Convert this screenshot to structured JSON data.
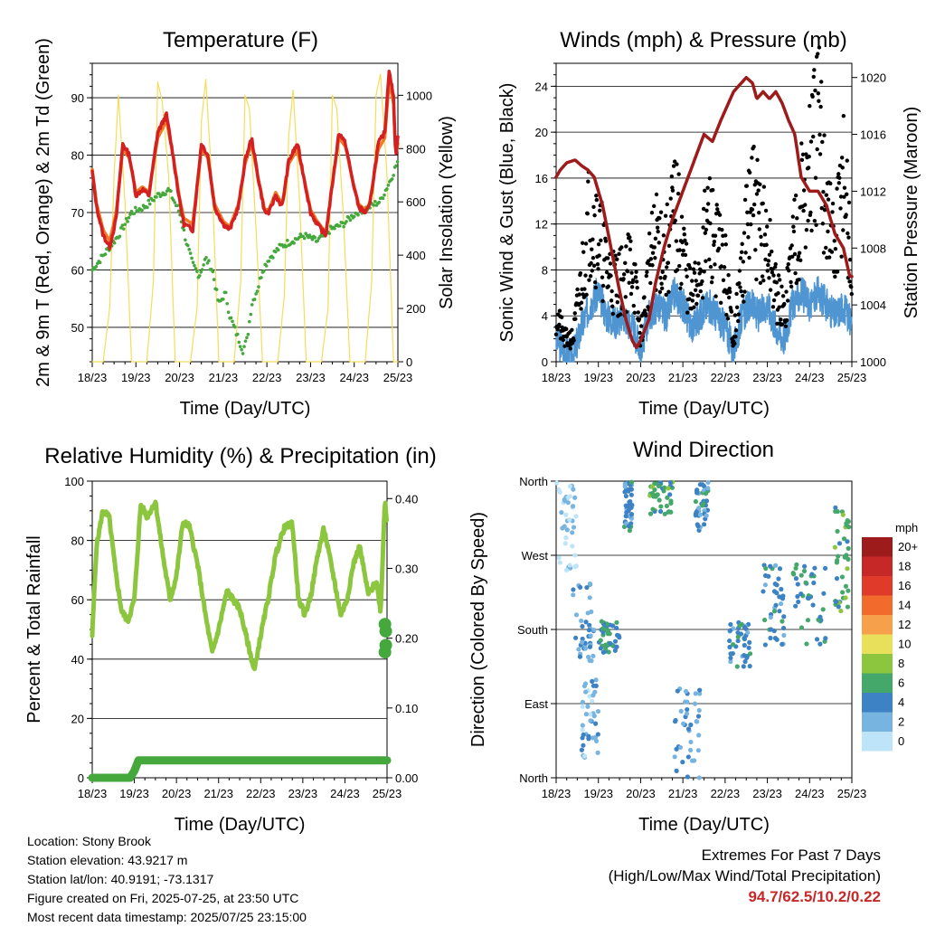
{
  "chart_data": [
    {
      "type": "line",
      "title": "Temperature (F)",
      "xlabel": "Time (Day/UTC)",
      "ylabel": "2m & 9m T (Red, Orange) & 2m Td (Green)",
      "y2label": "Solar Insolation (Yellow)",
      "x_ticks": [
        "18/23",
        "19/23",
        "20/23",
        "21/23",
        "22/23",
        "23/23",
        "24/23",
        "25/23"
      ],
      "xlim": [
        0,
        7
      ],
      "ylim": [
        44,
        96
      ],
      "y_ticks": [
        50,
        60,
        70,
        80,
        90
      ],
      "y2lim": [
        0,
        1120
      ],
      "y2_ticks": [
        0,
        200,
        400,
        600,
        800,
        1000
      ],
      "grid": "horizontal",
      "colors": {
        "t2m": "#d42020",
        "t9m": "#f07a28",
        "td": "#44a83c",
        "solar": "#f5dc5a"
      },
      "series": [
        {
          "key": "t2m",
          "x": [
            0,
            0.1,
            0.25,
            0.4,
            0.55,
            0.7,
            0.85,
            1.0,
            1.15,
            1.3,
            1.5,
            1.7,
            1.85,
            2.0,
            2.1,
            2.3,
            2.5,
            2.65,
            2.8,
            3.0,
            3.15,
            3.35,
            3.5,
            3.65,
            3.8,
            3.95,
            4.05,
            4.2,
            4.35,
            4.5,
            4.7,
            4.85,
            5.0,
            5.15,
            5.35,
            5.5,
            5.65,
            5.8,
            5.95,
            6.1,
            6.25,
            6.35,
            6.55,
            6.7,
            6.8,
            6.9,
            6.95,
            7.0
          ],
          "y": [
            77,
            71,
            66,
            64,
            69,
            82,
            80,
            73,
            74,
            73,
            84,
            87,
            80,
            72,
            68,
            67,
            82,
            80,
            71,
            68,
            67,
            71,
            79,
            83,
            76,
            70,
            70,
            73,
            71,
            79,
            82,
            76,
            70,
            68,
            66,
            75,
            84,
            82,
            76,
            71,
            70,
            71,
            82,
            84,
            95,
            90,
            80,
            83
          ]
        },
        {
          "key": "t9m",
          "x": [
            0,
            0.1,
            0.25,
            0.4,
            0.55,
            0.7,
            0.85,
            1.0,
            1.15,
            1.3,
            1.5,
            1.7,
            1.85,
            2.0,
            2.1,
            2.3,
            2.5,
            2.65,
            2.8,
            3.0,
            3.15,
            3.35,
            3.5,
            3.65,
            3.8,
            3.95,
            4.05,
            4.2,
            4.35,
            4.5,
            4.7,
            4.85,
            5.0,
            5.15,
            5.35,
            5.5,
            5.65,
            5.8,
            5.95,
            6.1,
            6.25,
            6.35,
            6.55,
            6.7,
            6.8,
            6.9,
            6.95,
            7.0
          ],
          "y": [
            77.5,
            71.5,
            67,
            65,
            70,
            81,
            79.5,
            73.5,
            74.5,
            73.5,
            83,
            86,
            80,
            72.5,
            69,
            68,
            81,
            79.5,
            71.5,
            68.5,
            67.5,
            71.5,
            78.5,
            82,
            76,
            70.5,
            70.5,
            73.5,
            71.5,
            78.5,
            81,
            76,
            70.5,
            68.5,
            66.5,
            75,
            83,
            81.5,
            76,
            71.5,
            70.5,
            71.5,
            81,
            83,
            93,
            89,
            80,
            82
          ]
        },
        {
          "key": "td",
          "x": [
            0,
            0.3,
            0.6,
            0.9,
            1.2,
            1.5,
            1.75,
            2.0,
            2.15,
            2.3,
            2.45,
            2.6,
            2.75,
            2.9,
            3.05,
            3.15,
            3.3,
            3.45,
            3.55,
            3.65,
            3.8,
            3.9,
            4.05,
            4.3,
            4.55,
            4.85,
            5.15,
            5.45,
            5.75,
            6.05,
            6.35,
            6.6,
            6.85,
            7.0
          ],
          "y": [
            60,
            63,
            66,
            70,
            71,
            73,
            74,
            70,
            65,
            61,
            59,
            62,
            60,
            54,
            56,
            52,
            49,
            46,
            48,
            54,
            57,
            60,
            62,
            64,
            65,
            66,
            65,
            67,
            68,
            70,
            71,
            72,
            76,
            79
          ]
        },
        {
          "key": "solar",
          "x": [
            0,
            0.25,
            0.4,
            0.5,
            0.6,
            0.75,
            0.9,
            1.25,
            1.4,
            1.5,
            1.6,
            1.75,
            1.9,
            2.25,
            2.4,
            2.5,
            2.6,
            2.75,
            2.9,
            3.25,
            3.4,
            3.5,
            3.6,
            3.75,
            3.9,
            4.25,
            4.4,
            4.5,
            4.6,
            4.75,
            4.9,
            5.25,
            5.4,
            5.5,
            5.6,
            5.75,
            5.9,
            6.25,
            6.4,
            6.5,
            6.6,
            6.75,
            6.9,
            7.0
          ],
          "y": [
            0,
            0,
            200,
            700,
            1000,
            600,
            0,
            0,
            300,
            1050,
            980,
            700,
            0,
            0,
            200,
            900,
            1060,
            650,
            0,
            0,
            300,
            1000,
            950,
            500,
            0,
            0,
            250,
            850,
            1020,
            600,
            0,
            0,
            200,
            1000,
            950,
            550,
            0,
            0,
            300,
            1000,
            1080,
            700,
            0,
            0
          ]
        }
      ]
    },
    {
      "type": "scatter",
      "title": "Winds (mph) & Pressure (mb)",
      "xlabel": "Time (Day/UTC)",
      "ylabel": "Sonic Wind & Gust (Blue, Black)",
      "y2label": "Station Pressure (Maroon)",
      "x_ticks": [
        "18/23",
        "19/23",
        "20/23",
        "21/23",
        "22/23",
        "23/23",
        "24/23",
        "25/23"
      ],
      "xlim": [
        0,
        7
      ],
      "ylim": [
        0,
        26
      ],
      "y_ticks": [
        0,
        4,
        8,
        12,
        16,
        20,
        24
      ],
      "y2lim": [
        1000,
        1021
      ],
      "y2_ticks": [
        1000,
        1004,
        1008,
        1012,
        1016,
        1020
      ],
      "grid": "horizontal",
      "colors": {
        "wind": "#4f95d2",
        "gust": "#000000",
        "pressure": "#9e1b1b"
      },
      "series": [
        {
          "key": "pressure",
          "x": [
            0,
            0.1,
            0.25,
            0.45,
            0.6,
            0.75,
            0.9,
            1.1,
            1.3,
            1.5,
            1.65,
            1.8,
            1.9,
            2.0,
            2.2,
            2.35,
            2.55,
            2.75,
            3.0,
            3.25,
            3.5,
            3.7,
            3.9,
            4.05,
            4.2,
            4.35,
            4.5,
            4.65,
            4.75,
            4.9,
            5.05,
            5.2,
            5.35,
            5.5,
            5.65,
            5.8,
            6.0,
            6.2,
            6.4,
            6.6,
            6.8,
            6.95,
            7.0
          ],
          "y": [
            1013,
            1013.5,
            1014,
            1014.2,
            1013.8,
            1013.5,
            1013,
            1011,
            1008,
            1005,
            1003,
            1001.5,
            1001,
            1001.5,
            1003,
            1005.5,
            1008,
            1010,
            1012,
            1014,
            1016,
            1015.5,
            1017,
            1018,
            1019,
            1019.5,
            1020,
            1019.6,
            1018.5,
            1019,
            1018.5,
            1019,
            1018.2,
            1017,
            1016,
            1013,
            1012,
            1012,
            1011,
            1009,
            1008,
            1006,
            1006
          ]
        },
        {
          "key": "wind",
          "x": [
            0,
            0.2,
            0.4,
            0.6,
            0.8,
            1.0,
            1.2,
            1.4,
            1.6,
            1.8,
            2.0,
            2.2,
            2.4,
            2.6,
            2.8,
            3.0,
            3.2,
            3.4,
            3.6,
            3.8,
            4.0,
            4.2,
            4.4,
            4.6,
            4.8,
            5.0,
            5.2,
            5.4,
            5.6,
            5.8,
            6.0,
            6.2,
            6.4,
            6.6,
            6.8,
            7.0
          ],
          "y": [
            2,
            1,
            0.5,
            3,
            5,
            6,
            4,
            3.5,
            4,
            3,
            1,
            4,
            5,
            4,
            6,
            5,
            3,
            4,
            5,
            4,
            3,
            1,
            4,
            5,
            4,
            5,
            3,
            2,
            5,
            6,
            5,
            6,
            5,
            4,
            5,
            3
          ]
        },
        {
          "key": "gust",
          "x": [
            0,
            0.2,
            0.4,
            0.6,
            0.8,
            1.0,
            1.2,
            1.4,
            1.6,
            1.8,
            2.0,
            2.2,
            2.4,
            2.6,
            2.8,
            3.0,
            3.2,
            3.4,
            3.6,
            3.8,
            4.0,
            4.2,
            4.4,
            4.6,
            4.8,
            5.0,
            5.2,
            5.4,
            5.6,
            5.8,
            6.0,
            6.2,
            6.4,
            6.6,
            6.8,
            7.0
          ],
          "y": [
            4,
            2,
            2,
            7,
            13,
            11,
            8,
            7,
            7,
            9,
            2,
            8,
            11,
            9,
            13,
            10,
            5,
            8,
            12,
            10,
            8,
            2,
            8,
            14,
            12,
            10,
            6,
            4,
            10,
            14,
            16,
            20,
            14,
            9,
            17,
            7
          ]
        }
      ]
    },
    {
      "type": "line",
      "title": "Relative Humidity (%) & Precipitation (in)",
      "xlabel": "Time (Day/UTC)",
      "ylabel": "Percent & Total Rainfall",
      "x_ticks": [
        "18/23",
        "19/23",
        "20/23",
        "21/23",
        "22/23",
        "23/23",
        "24/23",
        "25/23"
      ],
      "xlim": [
        0,
        7
      ],
      "ylim": [
        0,
        100
      ],
      "y_ticks": [
        0,
        20,
        40,
        60,
        80,
        100
      ],
      "y2lim": [
        0,
        0.425
      ],
      "y2_ticks": [
        "0.00",
        "0.10",
        "0.20",
        "0.30",
        "0.40"
      ],
      "grid": "horizontal",
      "colors": {
        "rh": "#8cc63f",
        "precip": "#44a83c"
      },
      "series": [
        {
          "key": "rh",
          "x": [
            0,
            0.1,
            0.25,
            0.4,
            0.55,
            0.7,
            0.85,
            1.0,
            1.15,
            1.3,
            1.5,
            1.7,
            1.85,
            2.0,
            2.15,
            2.3,
            2.5,
            2.7,
            2.85,
            3.0,
            3.2,
            3.35,
            3.5,
            3.7,
            3.85,
            4.0,
            4.2,
            4.35,
            4.55,
            4.75,
            4.9,
            5.05,
            5.2,
            5.35,
            5.5,
            5.7,
            5.9,
            6.05,
            6.2,
            6.35,
            6.55,
            6.75,
            6.85,
            6.95,
            7.0
          ],
          "y": [
            48,
            78,
            90,
            88,
            70,
            56,
            53,
            60,
            92,
            88,
            93,
            73,
            60,
            68,
            86,
            85,
            72,
            54,
            42,
            50,
            63,
            60,
            57,
            45,
            36,
            48,
            62,
            75,
            84,
            86,
            60,
            55,
            62,
            75,
            84,
            70,
            55,
            60,
            72,
            78,
            62,
            66,
            56,
            94,
            85
          ]
        },
        {
          "key": "precip",
          "x": [
            0,
            0.9,
            1.0,
            1.1,
            6.9,
            7.0
          ],
          "y": [
            0,
            0,
            0.01,
            0.025,
            0.025,
            0.025
          ]
        },
        {
          "key": "precip_points",
          "x": [
            6.95,
            6.97,
            6.95,
            6.97
          ],
          "y": [
            0.18,
            0.19,
            0.22,
            0.21
          ]
        }
      ]
    },
    {
      "type": "scatter",
      "title": "Wind Direction",
      "xlabel": "Time (Day/UTC)",
      "ylabel": "Direction (Colored By Speed)",
      "x_ticks": [
        "18/23",
        "19/23",
        "20/23",
        "21/23",
        "22/23",
        "23/23",
        "24/23",
        "25/23"
      ],
      "xlim": [
        0,
        7
      ],
      "ylim": [
        0,
        360
      ],
      "y_ticks": [
        "North",
        "East",
        "South",
        "West",
        "North"
      ],
      "grid": "horizontal",
      "legend": {
        "title": "mph",
        "placement": "right",
        "labels": [
          "20+",
          "18",
          "16",
          "14",
          "12",
          "10",
          "8",
          "6",
          "4",
          "2",
          "0"
        ],
        "colors": [
          "#9e1b1b",
          "#c62828",
          "#e03a2a",
          "#f26a2c",
          "#f7a04b",
          "#e8e05a",
          "#8cc63f",
          "#44a86a",
          "#3c82c4",
          "#78b4e0",
          "#bde4f8"
        ]
      },
      "clusters": [
        {
          "x": [
            0.0,
            0.5
          ],
          "y": [
            250,
            360
          ],
          "speed": 1
        },
        {
          "x": [
            0.4,
            0.9
          ],
          "y": [
            140,
            240
          ],
          "speed": 3
        },
        {
          "x": [
            0.6,
            1.0
          ],
          "y": [
            20,
            120
          ],
          "speed": 2
        },
        {
          "x": [
            1.0,
            1.5
          ],
          "y": [
            150,
            190
          ],
          "speed": 5
        },
        {
          "x": [
            1.6,
            1.8
          ],
          "y": [
            300,
            360
          ],
          "speed": 4
        },
        {
          "x": [
            2.2,
            2.8
          ],
          "y": [
            320,
            360
          ],
          "speed": 6
        },
        {
          "x": [
            2.8,
            3.4
          ],
          "y": [
            0,
            110
          ],
          "speed": 3
        },
        {
          "x": [
            3.3,
            3.6
          ],
          "y": [
            300,
            360
          ],
          "speed": 4
        },
        {
          "x": [
            4.1,
            4.6
          ],
          "y": [
            130,
            190
          ],
          "speed": 4
        },
        {
          "x": [
            4.9,
            5.4
          ],
          "y": [
            160,
            260
          ],
          "speed": 4
        },
        {
          "x": [
            5.6,
            6.4
          ],
          "y": [
            160,
            260
          ],
          "speed": 5
        },
        {
          "x": [
            6.6,
            6.95
          ],
          "y": [
            200,
            330
          ],
          "speed": 6
        }
      ]
    }
  ],
  "info": {
    "location": "Location: Stony Brook",
    "elevation": "Station elevation: 43.9217 m",
    "latlon": "Station lat/lon: 40.9191; -73.1317",
    "created": "Figure created on Fri, 2025-07-25, at 23:50 UTC",
    "recent": "Most recent data timestamp: 2025/07/25 23:15:00"
  },
  "extremes": {
    "title": "Extremes For Past 7 Days",
    "subtitle": "(High/Low/Max Wind/Total Precipitation)",
    "values": "94.7/62.5/10.2/0.22"
  }
}
